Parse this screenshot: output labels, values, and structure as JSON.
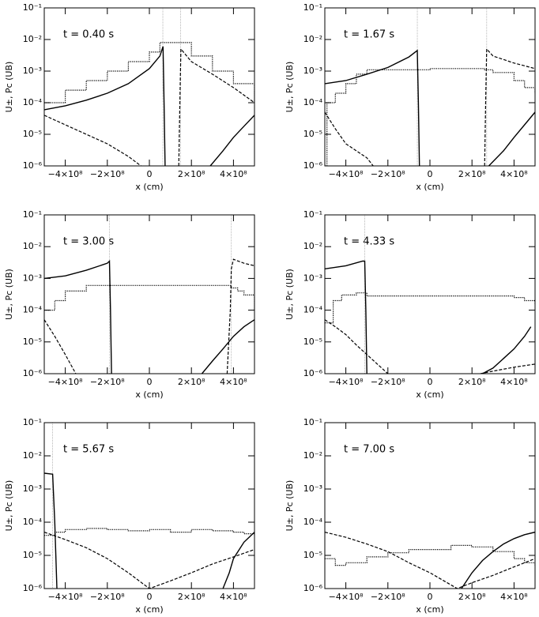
{
  "chart_data": [
    {
      "type": "line",
      "title": "t = 0.40 s",
      "xlabel": "x (cm)",
      "ylabel": "U±, Pc (UB)",
      "yscale": "log",
      "xlim": [
        -500000000,
        500000000
      ],
      "ylim": [
        1e-06,
        0.1
      ],
      "xticks": [
        {
          "value": -400000000,
          "label": "−4×10⁸"
        },
        {
          "value": -200000000,
          "label": "−2×10⁸"
        },
        0,
        {
          "value": 200000000,
          "label": "2×10⁸"
        },
        {
          "value": 400000000,
          "label": "4×10⁸"
        }
      ],
      "yticks": [
        {
          "value": 1e-06,
          "label": "10⁻⁶"
        },
        {
          "value": 1e-05,
          "label": "10⁻⁵"
        },
        {
          "value": 0.0001,
          "label": "10⁻⁴"
        },
        {
          "value": 0.001,
          "label": "10⁻³"
        },
        {
          "value": 0.01,
          "label": "10⁻²"
        },
        {
          "value": 0.1,
          "label": "10⁻¹"
        }
      ],
      "vlines": [
        64000000,
        148000000
      ],
      "series": [
        {
          "style": "solid",
          "color": "#000",
          "x": [
            -500000000,
            -400000000,
            -300000000,
            -200000000,
            -100000000,
            0,
            50000000,
            65000000,
            70000000,
            75000000,
            200000000,
            290000000,
            350000000,
            400000000,
            450000000,
            500000000
          ],
          "values": [
            6e-05,
            8e-05,
            0.00012,
            0.0002,
            0.0004,
            0.0012,
            0.003,
            0.006,
            0.0001,
            1e-06,
            null,
            1e-06,
            3e-06,
            8e-06,
            1.8e-05,
            4e-05
          ]
        },
        {
          "style": "dashed",
          "color": "#000",
          "x": [
            -500000000,
            -400000000,
            -300000000,
            -200000000,
            -100000000,
            -40000000,
            100000000,
            140000000,
            145000000,
            150000000,
            200000000,
            300000000,
            400000000,
            500000000
          ],
          "values": [
            4e-05,
            2e-05,
            1e-05,
            5e-06,
            2e-06,
            1e-06,
            null,
            1e-06,
            0.0001,
            0.005,
            0.002,
            0.0008,
            0.0003,
            0.0001
          ]
        },
        {
          "style": "dotted",
          "drawstyle": "steps",
          "color": "#000",
          "x": [
            -500000000,
            -400000000,
            -300000000,
            -200000000,
            -100000000,
            0,
            50000000,
            150000000,
            200000000,
            300000000,
            400000000,
            500000000
          ],
          "values": [
            0.0001,
            0.00025,
            0.0005,
            0.001,
            0.002,
            0.004,
            0.008,
            0.008,
            0.003,
            0.001,
            0.0004,
            0.0001
          ]
        }
      ]
    },
    {
      "type": "line",
      "title": "t = 1.67 s",
      "xlabel": "x (cm)",
      "ylabel": "U±, Pc (UB)",
      "yscale": "log",
      "xlim": [
        -500000000,
        500000000
      ],
      "ylim": [
        1e-06,
        0.1
      ],
      "xticks": [
        {
          "value": -400000000,
          "label": "−4×10⁸"
        },
        {
          "value": -200000000,
          "label": "−2×10⁸"
        },
        0,
        {
          "value": 200000000,
          "label": "2×10⁸"
        },
        {
          "value": 400000000,
          "label": "4×10⁸"
        }
      ],
      "yticks": [
        {
          "value": 1e-06,
          "label": "10⁻⁶"
        },
        {
          "value": 1e-05,
          "label": "10⁻⁵"
        },
        {
          "value": 0.0001,
          "label": "10⁻⁴"
        },
        {
          "value": 0.001,
          "label": "10⁻³"
        },
        {
          "value": 0.01,
          "label": "10⁻²"
        },
        {
          "value": 0.1,
          "label": "10⁻¹"
        }
      ],
      "vlines": [
        -60000000,
        270000000
      ],
      "series": [
        {
          "style": "solid",
          "color": "#000",
          "x": [
            -500000000,
            -400000000,
            -300000000,
            -200000000,
            -100000000,
            -60000000,
            -55000000,
            -50000000,
            100000000,
            280000000,
            350000000,
            400000000,
            450000000,
            500000000
          ],
          "values": [
            0.0004,
            0.0005,
            0.0008,
            0.0013,
            0.0028,
            0.0045,
            0.0001,
            1e-06,
            null,
            1e-06,
            3e-06,
            8e-06,
            2e-05,
            5e-05
          ]
        },
        {
          "style": "dashed",
          "color": "#000",
          "x": [
            -500000000,
            -450000000,
            -400000000,
            -350000000,
            -300000000,
            -270000000,
            100000000,
            260000000,
            265000000,
            270000000,
            300000000,
            400000000,
            500000000
          ],
          "values": [
            5e-05,
            1.5e-05,
            5e-06,
            3e-06,
            1.8e-06,
            1e-06,
            null,
            1e-06,
            0.0001,
            0.005,
            0.003,
            0.0018,
            0.0012
          ]
        },
        {
          "style": "dotted",
          "drawstyle": "steps",
          "color": "#000",
          "x": [
            -500000000,
            -490000000,
            -450000000,
            -400000000,
            -350000000,
            -300000000,
            0,
            260000000,
            300000000,
            400000000,
            450000000,
            500000000
          ],
          "values": [
            1e-06,
            0.0001,
            0.0002,
            0.0004,
            0.0008,
            0.0011,
            0.0012,
            0.0011,
            0.0009,
            0.0005,
            0.0003,
            0.0002
          ]
        }
      ]
    },
    {
      "type": "line",
      "title": "t = 3.00 s",
      "xlabel": "x (cm)",
      "ylabel": "U±, Pc (UB)",
      "yscale": "log",
      "xlim": [
        -500000000,
        500000000
      ],
      "ylim": [
        1e-06,
        0.1
      ],
      "xticks": [
        {
          "value": -400000000,
          "label": "−4×10⁸"
        },
        {
          "value": -200000000,
          "label": "−2×10⁸"
        },
        0,
        {
          "value": 200000000,
          "label": "2×10⁸"
        },
        {
          "value": 400000000,
          "label": "4×10⁸"
        }
      ],
      "yticks": [
        {
          "value": 1e-06,
          "label": "10⁻⁶"
        },
        {
          "value": 1e-05,
          "label": "10⁻⁵"
        },
        {
          "value": 0.0001,
          "label": "10⁻⁴"
        },
        {
          "value": 0.001,
          "label": "10⁻³"
        },
        {
          "value": 0.01,
          "label": "10⁻²"
        },
        {
          "value": 0.1,
          "label": "10⁻¹"
        }
      ],
      "vlines": [
        -190000000,
        390000000
      ],
      "series": [
        {
          "style": "solid",
          "color": "#000",
          "x": [
            -500000000,
            -400000000,
            -300000000,
            -200000000,
            -190000000,
            -185000000,
            -180000000,
            0,
            250000000,
            300000000,
            350000000,
            400000000,
            450000000,
            500000000
          ],
          "values": [
            0.001,
            0.0012,
            0.0018,
            0.003,
            0.0035,
            0.0001,
            1e-06,
            null,
            1e-06,
            2.5e-06,
            6e-06,
            1.5e-05,
            3e-05,
            5e-05
          ]
        },
        {
          "style": "dashed",
          "color": "#000",
          "x": [
            -500000000,
            -450000000,
            -400000000,
            -350000000,
            0,
            370000000,
            385000000,
            390000000,
            400000000,
            450000000,
            500000000
          ],
          "values": [
            5e-05,
            1.5e-05,
            4e-06,
            1e-06,
            null,
            1e-06,
            0.0001,
            0.002,
            0.004,
            0.003,
            0.0025
          ]
        },
        {
          "style": "dotted",
          "drawstyle": "steps",
          "color": "#000",
          "x": [
            -500000000,
            -450000000,
            -400000000,
            -300000000,
            0,
            390000000,
            420000000,
            450000000,
            500000000
          ],
          "values": [
            0.0001,
            0.0002,
            0.0004,
            0.0006,
            0.0006,
            0.0005,
            0.0004,
            0.0003,
            0.0001
          ]
        }
      ]
    },
    {
      "type": "line",
      "title": "t = 4.33 s",
      "xlabel": "x (cm)",
      "ylabel": "U±, Pc (UB)",
      "yscale": "log",
      "xlim": [
        -500000000,
        500000000
      ],
      "ylim": [
        1e-06,
        0.1
      ],
      "xticks": [
        {
          "value": -400000000,
          "label": "−4×10⁸"
        },
        {
          "value": -200000000,
          "label": "−2×10⁸"
        },
        0,
        {
          "value": 200000000,
          "label": "2×10⁸"
        },
        {
          "value": 400000000,
          "label": "4×10⁸"
        }
      ],
      "yticks": [
        {
          "value": 1e-06,
          "label": "10⁻⁶"
        },
        {
          "value": 1e-05,
          "label": "10⁻⁵"
        },
        {
          "value": 0.0001,
          "label": "10⁻⁴"
        },
        {
          "value": 0.001,
          "label": "10⁻³"
        },
        {
          "value": 0.01,
          "label": "10⁻²"
        },
        {
          "value": 0.1,
          "label": "10⁻¹"
        }
      ],
      "vlines": [
        -310000000
      ],
      "series": [
        {
          "style": "solid",
          "color": "#000",
          "x": [
            -500000000,
            -400000000,
            -320000000,
            -310000000,
            -305000000,
            -300000000,
            0,
            250000000,
            300000000,
            350000000,
            400000000,
            450000000,
            480000000
          ],
          "values": [
            0.002,
            0.0025,
            0.0035,
            0.0035,
            0.0001,
            1e-06,
            null,
            1e-06,
            1.5e-06,
            3e-06,
            6e-06,
            1.5e-05,
            3e-05
          ]
        },
        {
          "style": "dashed",
          "color": "#000",
          "x": [
            -500000000,
            -450000000,
            -400000000,
            -350000000,
            -300000000,
            -250000000,
            -200000000,
            0,
            240000000,
            300000000,
            400000000,
            500000000
          ],
          "values": [
            5e-05,
            3e-05,
            1.7e-05,
            8e-06,
            4e-06,
            2e-06,
            1e-06,
            null,
            1e-06,
            1.2e-06,
            1.6e-06,
            2e-06
          ]
        },
        {
          "style": "dotted",
          "drawstyle": "steps",
          "color": "#000",
          "x": [
            -500000000,
            -460000000,
            -420000000,
            -350000000,
            -300000000,
            0,
            400000000,
            450000000,
            500000000
          ],
          "values": [
            4e-05,
            0.0002,
            0.0003,
            0.00035,
            0.00028,
            0.00028,
            0.00025,
            0.0002,
            0.00015
          ]
        }
      ]
    },
    {
      "type": "line",
      "title": "t = 5.67 s",
      "xlabel": "x (cm)",
      "ylabel": "U±, Pc (UB)",
      "yscale": "log",
      "xlim": [
        -500000000,
        500000000
      ],
      "ylim": [
        1e-06,
        0.1
      ],
      "xticks": [
        {
          "value": -400000000,
          "label": "−4×10⁸"
        },
        {
          "value": -200000000,
          "label": "−2×10⁸"
        },
        0,
        {
          "value": 200000000,
          "label": "2×10⁸"
        },
        {
          "value": 400000000,
          "label": "4×10⁸"
        }
      ],
      "yticks": [
        {
          "value": 1e-06,
          "label": "10⁻⁶"
        },
        {
          "value": 1e-05,
          "label": "10⁻⁵"
        },
        {
          "value": 0.0001,
          "label": "10⁻⁴"
        },
        {
          "value": 0.001,
          "label": "10⁻³"
        },
        {
          "value": 0.01,
          "label": "10⁻²"
        },
        {
          "value": 0.1,
          "label": "10⁻¹"
        }
      ],
      "vlines": [
        -460000000
      ],
      "series": [
        {
          "style": "solid",
          "color": "#000",
          "x": [
            -500000000,
            -460000000,
            -450000000,
            -440000000,
            0,
            350000000,
            380000000,
            400000000,
            450000000,
            500000000
          ],
          "values": [
            0.003,
            0.0028,
            0.0001,
            1e-06,
            null,
            1e-06,
            3e-06,
            8e-06,
            2.5e-05,
            5e-05
          ]
        },
        {
          "style": "dashed",
          "color": "#000",
          "x": [
            -500000000,
            -400000000,
            -300000000,
            -200000000,
            -100000000,
            0,
            100000000,
            200000000,
            300000000,
            400000000,
            500000000
          ],
          "values": [
            5e-05,
            3e-05,
            1.7e-05,
            8e-06,
            3e-06,
            1e-06,
            1.7e-06,
            3e-06,
            5.5e-06,
            9e-06,
            1.5e-05
          ]
        },
        {
          "style": "dotted",
          "drawstyle": "steps",
          "color": "#000",
          "x": [
            -500000000,
            -450000000,
            -400000000,
            -300000000,
            -200000000,
            -100000000,
            0,
            100000000,
            200000000,
            300000000,
            400000000,
            450000000,
            500000000
          ],
          "values": [
            4e-05,
            5e-05,
            6e-05,
            6.5e-05,
            6e-05,
            5.5e-05,
            6e-05,
            5e-05,
            6e-05,
            5.5e-05,
            5e-05,
            4.5e-05,
            4e-05
          ]
        }
      ]
    },
    {
      "type": "line",
      "title": "t = 7.00 s",
      "xlabel": "x (cm)",
      "ylabel": "U±, Pc (UB)",
      "yscale": "log",
      "xlim": [
        -500000000,
        500000000
      ],
      "ylim": [
        1e-06,
        0.1
      ],
      "xticks": [
        {
          "value": -400000000,
          "label": "−4×10⁸"
        },
        {
          "value": -200000000,
          "label": "−2×10⁸"
        },
        0,
        {
          "value": 200000000,
          "label": "2×10⁸"
        },
        {
          "value": 400000000,
          "label": "4×10⁸"
        }
      ],
      "yticks": [
        {
          "value": 1e-06,
          "label": "10⁻⁶"
        },
        {
          "value": 1e-05,
          "label": "10⁻⁵"
        },
        {
          "value": 0.0001,
          "label": "10⁻⁴"
        },
        {
          "value": 0.001,
          "label": "10⁻³"
        },
        {
          "value": 0.01,
          "label": "10⁻²"
        },
        {
          "value": 0.1,
          "label": "10⁻¹"
        }
      ],
      "vlines": [],
      "series": [
        {
          "style": "solid",
          "color": "#000",
          "x": [
            150000000,
            200000000,
            250000000,
            300000000,
            350000000,
            400000000,
            450000000,
            500000000
          ],
          "values": [
            1e-06,
            3e-06,
            7e-06,
            1.3e-05,
            2.2e-05,
            3.2e-05,
            4.2e-05,
            5e-05
          ]
        },
        {
          "style": "dashed",
          "color": "#000",
          "x": [
            -500000000,
            -400000000,
            -300000000,
            -200000000,
            -100000000,
            0,
            130000000,
            200000000,
            300000000,
            400000000,
            500000000
          ],
          "values": [
            5e-05,
            3.5e-05,
            2.2e-05,
            1.3e-05,
            6e-06,
            3e-06,
            1e-06,
            1.5e-06,
            2.5e-06,
            4.5e-06,
            8e-06
          ]
        },
        {
          "style": "dotted",
          "drawstyle": "steps",
          "color": "#000",
          "x": [
            -500000000,
            -450000000,
            -400000000,
            -300000000,
            -200000000,
            -100000000,
            0,
            100000000,
            200000000,
            300000000,
            400000000,
            450000000,
            500000000
          ],
          "values": [
            8e-06,
            5e-06,
            6e-06,
            9e-06,
            1.2e-05,
            1.5e-05,
            1.5e-05,
            2e-05,
            1.8e-05,
            1.3e-05,
            8e-06,
            6e-06,
            5e-06
          ]
        }
      ]
    }
  ]
}
